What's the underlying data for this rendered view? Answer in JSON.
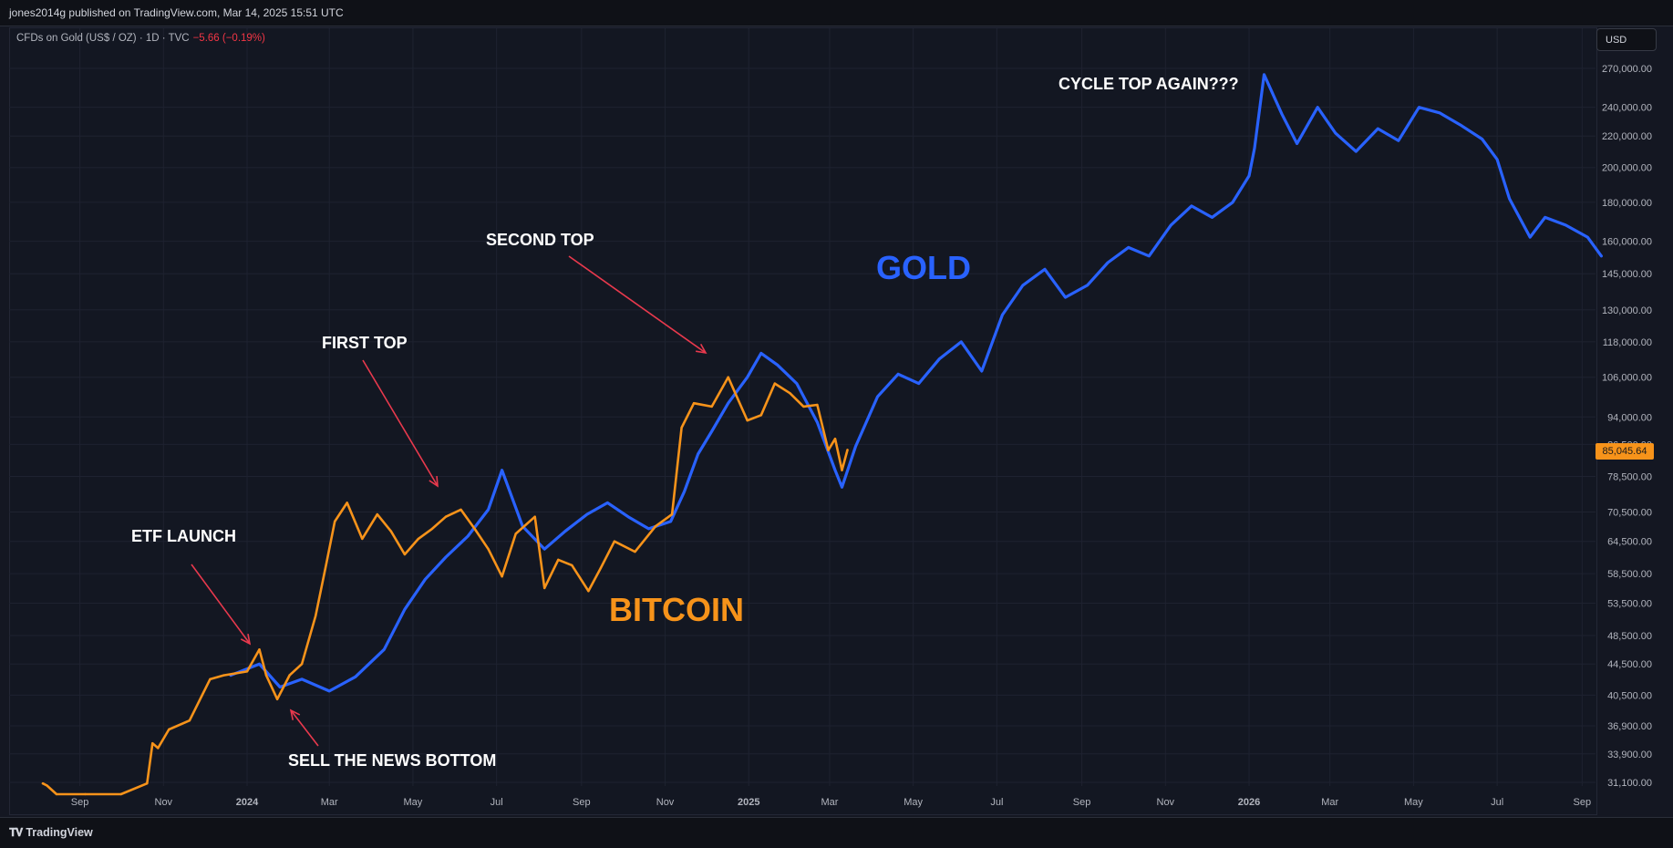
{
  "header": {
    "publisher": "jones2014g published on TradingView.com, Mar 14, 2025 15:51 UTC"
  },
  "legend": {
    "symbol": "CFDs on Gold (US$ / OZ) · 1D · TVC",
    "change": "−5.66 (−0.19%)"
  },
  "currency_button": "USD",
  "last_price": "85,045.64",
  "footer": {
    "logo_text": "TradingView"
  },
  "colors": {
    "gold_series": "#2962ff",
    "bitcoin_series": "#f7931a",
    "annotation_arrow": "#e8394d",
    "background": "#131722"
  },
  "chart_data": {
    "type": "line",
    "y_scale": "log",
    "ylim": [
      30500,
      290000
    ],
    "x_ticks": [
      "Sep",
      "Nov",
      "2024",
      "Mar",
      "May",
      "Jul",
      "Sep",
      "Nov",
      "2025",
      "Mar",
      "May",
      "Jul",
      "Sep",
      "Nov",
      "2026",
      "Mar",
      "May",
      "Jul",
      "Sep"
    ],
    "y_ticks": [
      "270,000.00",
      "240,000.00",
      "220,000.00",
      "200,000.00",
      "180,000.00",
      "160,000.00",
      "145,000.00",
      "130,000.00",
      "118,000.00",
      "106,000.00",
      "94,000.00",
      "86,500.00",
      "78,500.00",
      "70,500.00",
      "64,500.00",
      "58,500.00",
      "53,500.00",
      "48,500.00",
      "44,500.00",
      "40,500.00",
      "36,900.00",
      "33,900.00",
      "31,100.00"
    ],
    "series": [
      {
        "name": "GOLD",
        "x": [
          "2023-12-20",
          "2024-01-10",
          "2024-01-25",
          "2024-02-10",
          "2024-03-01",
          "2024-03-20",
          "2024-04-10",
          "2024-04-25",
          "2024-05-10",
          "2024-05-25",
          "2024-06-10",
          "2024-06-25",
          "2024-07-05",
          "2024-07-20",
          "2024-08-05",
          "2024-08-20",
          "2024-09-05",
          "2024-09-20",
          "2024-10-05",
          "2024-10-20",
          "2024-11-05",
          "2024-11-15",
          "2024-11-25",
          "2024-12-05",
          "2024-12-17",
          "2024-12-31",
          "2025-01-10",
          "2025-01-22",
          "2025-02-05",
          "2025-02-20",
          "2025-03-05",
          "2025-03-10",
          "2025-03-20",
          "2025-04-05",
          "2025-04-20",
          "2025-05-05",
          "2025-05-20",
          "2025-06-05",
          "2025-06-20",
          "2025-07-05",
          "2025-07-20",
          "2025-08-05",
          "2025-08-20",
          "2025-09-05",
          "2025-09-20",
          "2025-10-05",
          "2025-10-20",
          "2025-11-05",
          "2025-11-20",
          "2025-12-05",
          "2025-12-20",
          "2026-01-01",
          "2026-01-05",
          "2026-01-12",
          "2026-01-25",
          "2026-02-05",
          "2026-02-20",
          "2026-03-05",
          "2026-03-20",
          "2026-04-05",
          "2026-04-20",
          "2026-05-05",
          "2026-05-20",
          "2026-06-05",
          "2026-06-20",
          "2026-07-01",
          "2026-07-10",
          "2026-07-25",
          "2026-08-05",
          "2026-08-20",
          "2026-09-05",
          "2026-09-15"
        ],
        "values": [
          43000,
          44500,
          41500,
          42500,
          41000,
          42800,
          46500,
          52500,
          57500,
          61500,
          65500,
          71000,
          80000,
          67500,
          63000,
          66500,
          70000,
          72500,
          69500,
          67000,
          68500,
          75000,
          84000,
          90000,
          98000,
          106000,
          114000,
          110000,
          104000,
          92500,
          80000,
          76000,
          86000,
          100000,
          107000,
          104000,
          112000,
          118000,
          108000,
          128000,
          140000,
          147000,
          135000,
          140000,
          150000,
          157000,
          153000,
          168000,
          178000,
          172000,
          180000,
          195000,
          212000,
          265000,
          235000,
          215000,
          240000,
          222000,
          210000,
          225000,
          217000,
          240000,
          236000,
          227000,
          218000,
          205000,
          182000,
          162000,
          172000,
          168000,
          162000,
          153000
        ]
      },
      {
        "name": "BITCOIN",
        "x": [
          "2023-08-05",
          "2023-08-08",
          "2023-08-15",
          "2023-09-05",
          "2023-10-01",
          "2023-10-20",
          "2023-10-24",
          "2023-10-28",
          "2023-11-05",
          "2023-11-20",
          "2023-12-05",
          "2023-12-15",
          "2024-01-01",
          "2024-01-10",
          "2024-01-15",
          "2024-01-23",
          "2024-02-01",
          "2024-02-10",
          "2024-02-20",
          "2024-02-28",
          "2024-03-05",
          "2024-03-14",
          "2024-03-25",
          "2024-04-05",
          "2024-04-15",
          "2024-04-25",
          "2024-05-05",
          "2024-05-15",
          "2024-05-25",
          "2024-06-05",
          "2024-06-15",
          "2024-06-25",
          "2024-07-05",
          "2024-07-15",
          "2024-07-29",
          "2024-08-05",
          "2024-08-15",
          "2024-08-25",
          "2024-09-06",
          "2024-09-15",
          "2024-09-25",
          "2024-10-10",
          "2024-10-25",
          "2024-11-06",
          "2024-11-13",
          "2024-11-22",
          "2024-12-05",
          "2024-12-17",
          "2024-12-31",
          "2025-01-10",
          "2025-01-20",
          "2025-01-31",
          "2025-02-10",
          "2025-02-20",
          "2025-02-28",
          "2025-03-05",
          "2025-03-10",
          "2025-03-14"
        ],
        "values": [
          31000,
          30800,
          30000,
          30000,
          30000,
          31000,
          35000,
          34500,
          36500,
          37500,
          42500,
          43000,
          43500,
          46500,
          43000,
          40000,
          43000,
          44500,
          51500,
          60500,
          68500,
          72500,
          65000,
          70000,
          66500,
          62000,
          65000,
          67000,
          69500,
          71000,
          67000,
          63000,
          58000,
          66000,
          69500,
          56000,
          61000,
          60000,
          55500,
          59500,
          64500,
          62500,
          67500,
          70000,
          91000,
          98000,
          97000,
          106000,
          93000,
          94500,
          104000,
          101000,
          97000,
          97500,
          85000,
          88000,
          80000,
          85045.64
        ]
      }
    ],
    "annotations": [
      "ETF LAUNCH",
      "FIRST TOP",
      "SECOND TOP",
      "SELL THE NEWS BOTTOM",
      "CYCLE TOP AGAIN???",
      "GOLD",
      "BITCOIN"
    ]
  }
}
